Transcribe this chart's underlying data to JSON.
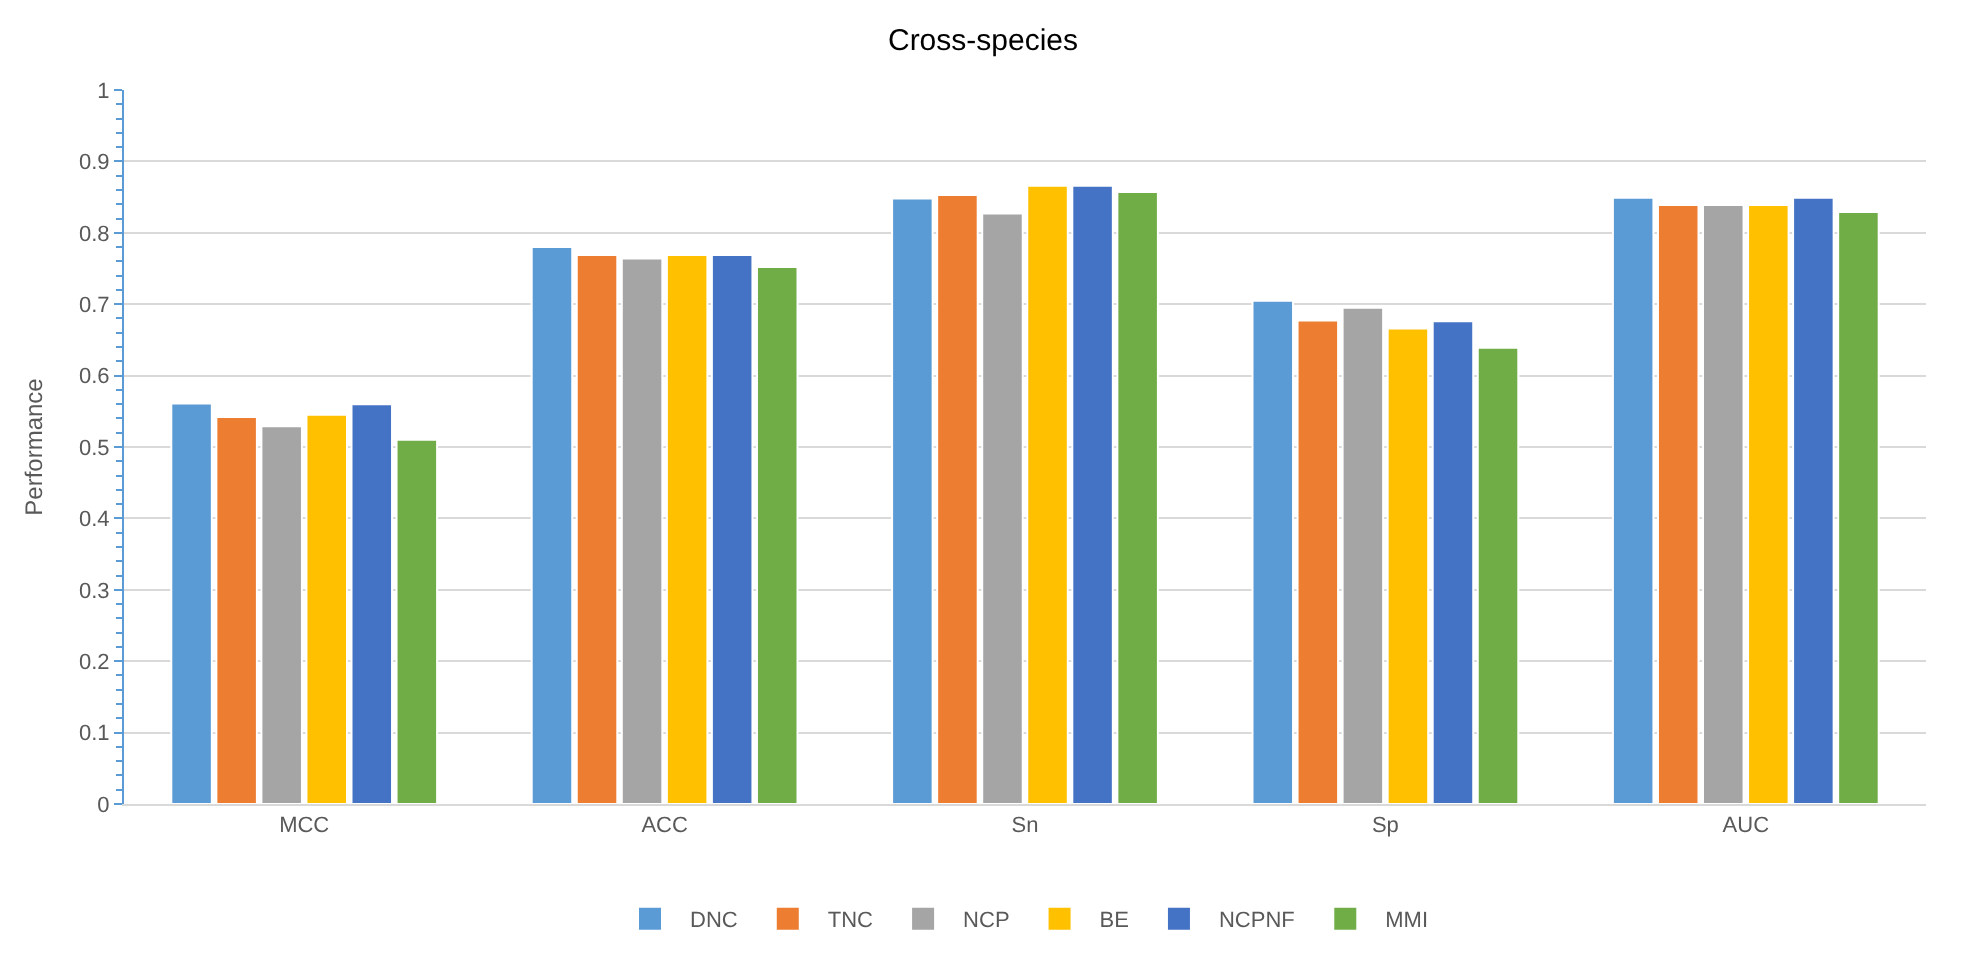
{
  "chart_data": {
    "type": "bar",
    "title": "Cross-species",
    "ylabel": "Performance",
    "categories": [
      "MCC",
      "ACC",
      "Sn",
      "Sp",
      "AUC"
    ],
    "series": [
      {
        "name": "DNC",
        "color": "#5b9bd5",
        "values": [
          0.561,
          0.78,
          0.848,
          0.705,
          0.849
        ]
      },
      {
        "name": "TNC",
        "color": "#ed7d31",
        "values": [
          0.542,
          0.769,
          0.853,
          0.677,
          0.839
        ]
      },
      {
        "name": "NCP",
        "color": "#a5a5a5",
        "values": [
          0.529,
          0.764,
          0.827,
          0.695,
          0.839
        ]
      },
      {
        "name": "BE",
        "color": "#ffc000",
        "values": [
          0.545,
          0.769,
          0.866,
          0.666,
          0.839
        ]
      },
      {
        "name": "NCPNF",
        "color": "#4472c4",
        "values": [
          0.56,
          0.769,
          0.866,
          0.676,
          0.849
        ]
      },
      {
        "name": "MMI",
        "color": "#70ad47",
        "values": [
          0.51,
          0.752,
          0.857,
          0.639,
          0.829
        ]
      }
    ],
    "ylim": [
      0,
      1
    ],
    "yticks": [
      0,
      0.1,
      0.2,
      0.3,
      0.4,
      0.5,
      0.6,
      0.7,
      0.8,
      0.9,
      1
    ],
    "grid": "y",
    "legend": "bottom"
  }
}
